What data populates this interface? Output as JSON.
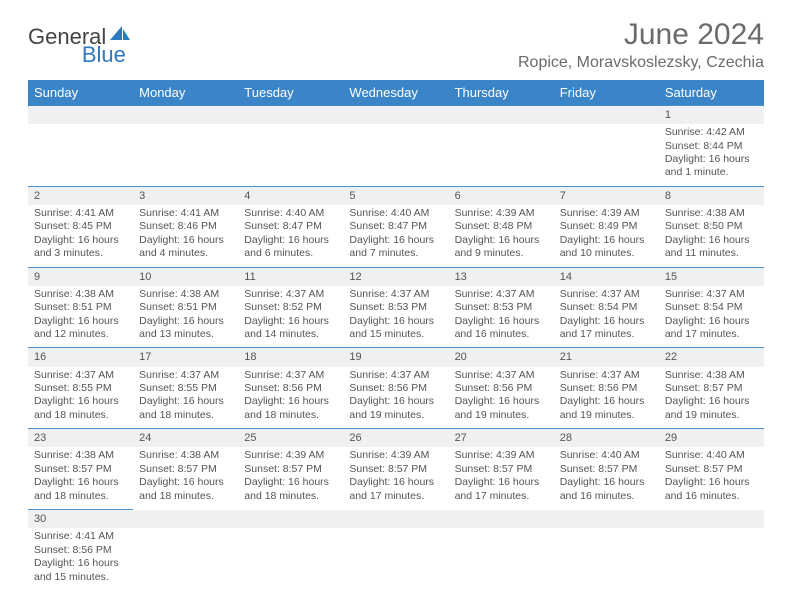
{
  "logo": {
    "text1": "General",
    "text2": "Blue"
  },
  "title": "June 2024",
  "location": "Ropice, Moravskoslezsky, Czechia",
  "colors": {
    "header_bg": "#3a84c8",
    "header_text": "#ffffff",
    "daynum_bg": "#eef0f1",
    "border": "#4b90cc",
    "text": "#555555",
    "title_text": "#6b6b6b",
    "logo_blue": "#2f78bf"
  },
  "weekdays": [
    "Sunday",
    "Monday",
    "Tuesday",
    "Wednesday",
    "Thursday",
    "Friday",
    "Saturday"
  ],
  "weeks": [
    [
      null,
      null,
      null,
      null,
      null,
      null,
      {
        "n": "1",
        "sr": "Sunrise: 4:42 AM",
        "ss": "Sunset: 8:44 PM",
        "d1": "Daylight: 16 hours",
        "d2": "and 1 minute."
      }
    ],
    [
      {
        "n": "2",
        "sr": "Sunrise: 4:41 AM",
        "ss": "Sunset: 8:45 PM",
        "d1": "Daylight: 16 hours",
        "d2": "and 3 minutes."
      },
      {
        "n": "3",
        "sr": "Sunrise: 4:41 AM",
        "ss": "Sunset: 8:46 PM",
        "d1": "Daylight: 16 hours",
        "d2": "and 4 minutes."
      },
      {
        "n": "4",
        "sr": "Sunrise: 4:40 AM",
        "ss": "Sunset: 8:47 PM",
        "d1": "Daylight: 16 hours",
        "d2": "and 6 minutes."
      },
      {
        "n": "5",
        "sr": "Sunrise: 4:40 AM",
        "ss": "Sunset: 8:47 PM",
        "d1": "Daylight: 16 hours",
        "d2": "and 7 minutes."
      },
      {
        "n": "6",
        "sr": "Sunrise: 4:39 AM",
        "ss": "Sunset: 8:48 PM",
        "d1": "Daylight: 16 hours",
        "d2": "and 9 minutes."
      },
      {
        "n": "7",
        "sr": "Sunrise: 4:39 AM",
        "ss": "Sunset: 8:49 PM",
        "d1": "Daylight: 16 hours",
        "d2": "and 10 minutes."
      },
      {
        "n": "8",
        "sr": "Sunrise: 4:38 AM",
        "ss": "Sunset: 8:50 PM",
        "d1": "Daylight: 16 hours",
        "d2": "and 11 minutes."
      }
    ],
    [
      {
        "n": "9",
        "sr": "Sunrise: 4:38 AM",
        "ss": "Sunset: 8:51 PM",
        "d1": "Daylight: 16 hours",
        "d2": "and 12 minutes."
      },
      {
        "n": "10",
        "sr": "Sunrise: 4:38 AM",
        "ss": "Sunset: 8:51 PM",
        "d1": "Daylight: 16 hours",
        "d2": "and 13 minutes."
      },
      {
        "n": "11",
        "sr": "Sunrise: 4:37 AM",
        "ss": "Sunset: 8:52 PM",
        "d1": "Daylight: 16 hours",
        "d2": "and 14 minutes."
      },
      {
        "n": "12",
        "sr": "Sunrise: 4:37 AM",
        "ss": "Sunset: 8:53 PM",
        "d1": "Daylight: 16 hours",
        "d2": "and 15 minutes."
      },
      {
        "n": "13",
        "sr": "Sunrise: 4:37 AM",
        "ss": "Sunset: 8:53 PM",
        "d1": "Daylight: 16 hours",
        "d2": "and 16 minutes."
      },
      {
        "n": "14",
        "sr": "Sunrise: 4:37 AM",
        "ss": "Sunset: 8:54 PM",
        "d1": "Daylight: 16 hours",
        "d2": "and 17 minutes."
      },
      {
        "n": "15",
        "sr": "Sunrise: 4:37 AM",
        "ss": "Sunset: 8:54 PM",
        "d1": "Daylight: 16 hours",
        "d2": "and 17 minutes."
      }
    ],
    [
      {
        "n": "16",
        "sr": "Sunrise: 4:37 AM",
        "ss": "Sunset: 8:55 PM",
        "d1": "Daylight: 16 hours",
        "d2": "and 18 minutes."
      },
      {
        "n": "17",
        "sr": "Sunrise: 4:37 AM",
        "ss": "Sunset: 8:55 PM",
        "d1": "Daylight: 16 hours",
        "d2": "and 18 minutes."
      },
      {
        "n": "18",
        "sr": "Sunrise: 4:37 AM",
        "ss": "Sunset: 8:56 PM",
        "d1": "Daylight: 16 hours",
        "d2": "and 18 minutes."
      },
      {
        "n": "19",
        "sr": "Sunrise: 4:37 AM",
        "ss": "Sunset: 8:56 PM",
        "d1": "Daylight: 16 hours",
        "d2": "and 19 minutes."
      },
      {
        "n": "20",
        "sr": "Sunrise: 4:37 AM",
        "ss": "Sunset: 8:56 PM",
        "d1": "Daylight: 16 hours",
        "d2": "and 19 minutes."
      },
      {
        "n": "21",
        "sr": "Sunrise: 4:37 AM",
        "ss": "Sunset: 8:56 PM",
        "d1": "Daylight: 16 hours",
        "d2": "and 19 minutes."
      },
      {
        "n": "22",
        "sr": "Sunrise: 4:38 AM",
        "ss": "Sunset: 8:57 PM",
        "d1": "Daylight: 16 hours",
        "d2": "and 19 minutes."
      }
    ],
    [
      {
        "n": "23",
        "sr": "Sunrise: 4:38 AM",
        "ss": "Sunset: 8:57 PM",
        "d1": "Daylight: 16 hours",
        "d2": "and 18 minutes."
      },
      {
        "n": "24",
        "sr": "Sunrise: 4:38 AM",
        "ss": "Sunset: 8:57 PM",
        "d1": "Daylight: 16 hours",
        "d2": "and 18 minutes."
      },
      {
        "n": "25",
        "sr": "Sunrise: 4:39 AM",
        "ss": "Sunset: 8:57 PM",
        "d1": "Daylight: 16 hours",
        "d2": "and 18 minutes."
      },
      {
        "n": "26",
        "sr": "Sunrise: 4:39 AM",
        "ss": "Sunset: 8:57 PM",
        "d1": "Daylight: 16 hours",
        "d2": "and 17 minutes."
      },
      {
        "n": "27",
        "sr": "Sunrise: 4:39 AM",
        "ss": "Sunset: 8:57 PM",
        "d1": "Daylight: 16 hours",
        "d2": "and 17 minutes."
      },
      {
        "n": "28",
        "sr": "Sunrise: 4:40 AM",
        "ss": "Sunset: 8:57 PM",
        "d1": "Daylight: 16 hours",
        "d2": "and 16 minutes."
      },
      {
        "n": "29",
        "sr": "Sunrise: 4:40 AM",
        "ss": "Sunset: 8:57 PM",
        "d1": "Daylight: 16 hours",
        "d2": "and 16 minutes."
      }
    ],
    [
      {
        "n": "30",
        "sr": "Sunrise: 4:41 AM",
        "ss": "Sunset: 8:56 PM",
        "d1": "Daylight: 16 hours",
        "d2": "and 15 minutes."
      },
      null,
      null,
      null,
      null,
      null,
      null
    ]
  ]
}
